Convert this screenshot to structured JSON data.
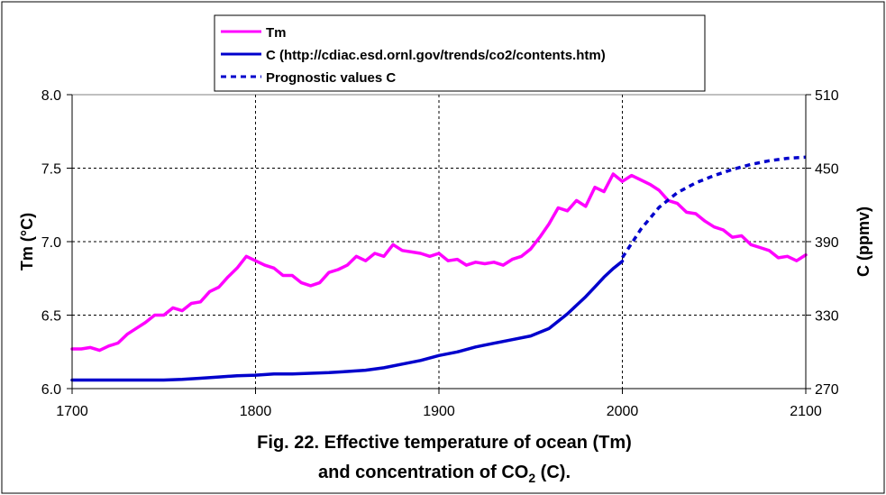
{
  "chart_data": {
    "type": "line",
    "x_axis": {
      "label": "",
      "min": 1700,
      "max": 2100,
      "ticks": [
        1700,
        1800,
        1900,
        2000,
        2100
      ]
    },
    "y_axis_left": {
      "label": "Tm (°C)",
      "min": 6.0,
      "max": 8.0,
      "ticks": [
        "6.0",
        "6.5",
        "7.0",
        "7.5",
        "8.0"
      ]
    },
    "y_axis_right": {
      "label": "C (ppmv)",
      "min": 270,
      "max": 510,
      "ticks": [
        "270",
        "330",
        "390",
        "450",
        "510"
      ]
    },
    "grid": true,
    "legend_position": "top-center",
    "caption_line1": "Fig. 22. Effective temperature of ocean (Tm)",
    "caption_line2_prefix": "and concentration of CO",
    "caption_line2_sub": "2",
    "caption_line2_suffix": " (C).",
    "series": [
      {
        "name": "Tm",
        "axis": "left",
        "color": "#ff00ff",
        "style": "solid",
        "x": [
          1700,
          1705,
          1710,
          1715,
          1720,
          1725,
          1730,
          1735,
          1740,
          1745,
          1750,
          1755,
          1760,
          1765,
          1770,
          1775,
          1780,
          1785,
          1790,
          1795,
          1800,
          1805,
          1810,
          1815,
          1820,
          1825,
          1830,
          1835,
          1840,
          1845,
          1850,
          1855,
          1860,
          1865,
          1870,
          1875,
          1880,
          1885,
          1890,
          1895,
          1900,
          1905,
          1910,
          1915,
          1920,
          1925,
          1930,
          1935,
          1940,
          1945,
          1950,
          1955,
          1960,
          1965,
          1970,
          1975,
          1980,
          1985,
          1990,
          1995,
          2000,
          2005,
          2010,
          2015,
          2020,
          2025,
          2030,
          2035,
          2040,
          2045,
          2050,
          2055,
          2060,
          2065,
          2070,
          2075,
          2080,
          2085,
          2090,
          2095,
          2100
        ],
        "y": [
          6.27,
          6.27,
          6.28,
          6.26,
          6.29,
          6.31,
          6.37,
          6.41,
          6.45,
          6.5,
          6.5,
          6.55,
          6.53,
          6.58,
          6.59,
          6.66,
          6.69,
          6.76,
          6.82,
          6.9,
          6.87,
          6.84,
          6.82,
          6.77,
          6.77,
          6.72,
          6.7,
          6.72,
          6.79,
          6.81,
          6.84,
          6.9,
          6.87,
          6.92,
          6.9,
          6.98,
          6.94,
          6.93,
          6.92,
          6.9,
          6.92,
          6.87,
          6.88,
          6.84,
          6.86,
          6.85,
          6.86,
          6.84,
          6.88,
          6.9,
          6.95,
          7.03,
          7.12,
          7.23,
          7.21,
          7.28,
          7.24,
          7.37,
          7.34,
          7.46,
          7.41,
          7.45,
          7.42,
          7.39,
          7.35,
          7.28,
          7.26,
          7.2,
          7.19,
          7.14,
          7.1,
          7.08,
          7.03,
          7.04,
          6.98,
          6.96,
          6.94,
          6.89,
          6.9,
          6.87,
          6.91
        ]
      },
      {
        "name": "C (http://cdiac.esd.ornl.gov/trends/co2/contents.htm)",
        "axis": "right",
        "color": "#0000cc",
        "style": "solid",
        "x": [
          1700,
          1750,
          1760,
          1770,
          1780,
          1790,
          1800,
          1810,
          1820,
          1830,
          1840,
          1850,
          1860,
          1870,
          1880,
          1890,
          1900,
          1910,
          1920,
          1930,
          1940,
          1950,
          1955,
          1960,
          1965,
          1970,
          1975,
          1980,
          1985,
          1990,
          1995,
          2000
        ],
        "y": [
          277,
          277,
          277.5,
          278.5,
          279.5,
          280.5,
          281,
          282,
          282,
          282.5,
          283,
          284,
          285,
          287,
          290,
          293,
          297,
          300,
          304,
          307,
          310,
          313,
          316,
          319,
          325,
          331,
          338,
          345,
          353,
          361,
          368,
          374
        ]
      },
      {
        "name": "Prognostic values C",
        "axis": "right",
        "color": "#0000cc",
        "style": "dashed",
        "x": [
          2000,
          2010,
          2020,
          2030,
          2040,
          2050,
          2060,
          2070,
          2080,
          2090,
          2100
        ],
        "y": [
          377,
          400,
          418,
          430,
          438,
          444,
          449,
          453,
          456,
          458,
          459
        ]
      }
    ]
  }
}
